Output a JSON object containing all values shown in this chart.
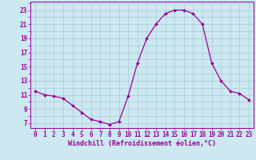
{
  "x": [
    0,
    1,
    2,
    3,
    4,
    5,
    6,
    7,
    8,
    9,
    10,
    11,
    12,
    13,
    14,
    15,
    16,
    17,
    18,
    19,
    20,
    21,
    22,
    23
  ],
  "y": [
    11.5,
    11.0,
    10.8,
    10.5,
    9.5,
    8.5,
    7.5,
    7.2,
    6.8,
    7.2,
    10.8,
    15.5,
    19.0,
    21.0,
    22.5,
    23.0,
    23.0,
    22.5,
    21.0,
    15.5,
    13.0,
    11.5,
    11.2,
    10.3
  ],
  "line_color": "#990099",
  "marker": "D",
  "markersize": 2.0,
  "linewidth": 0.9,
  "bg_color": "#cce8f0",
  "grid_color": "#b0d0dc",
  "xlabel": "Windchill (Refroidissement éolien,°C)",
  "xlabel_color": "#990099",
  "tick_color": "#990099",
  "ylabel_ticks": [
    7,
    9,
    11,
    13,
    15,
    17,
    19,
    21,
    23
  ],
  "xlim": [
    -0.5,
    23.5
  ],
  "ylim": [
    6.3,
    24.2
  ],
  "xticks": [
    0,
    1,
    2,
    3,
    4,
    5,
    6,
    7,
    8,
    9,
    10,
    11,
    12,
    13,
    14,
    15,
    16,
    17,
    18,
    19,
    20,
    21,
    22,
    23
  ],
  "tick_fontsize": 5.5,
  "label_fontsize": 6.0
}
